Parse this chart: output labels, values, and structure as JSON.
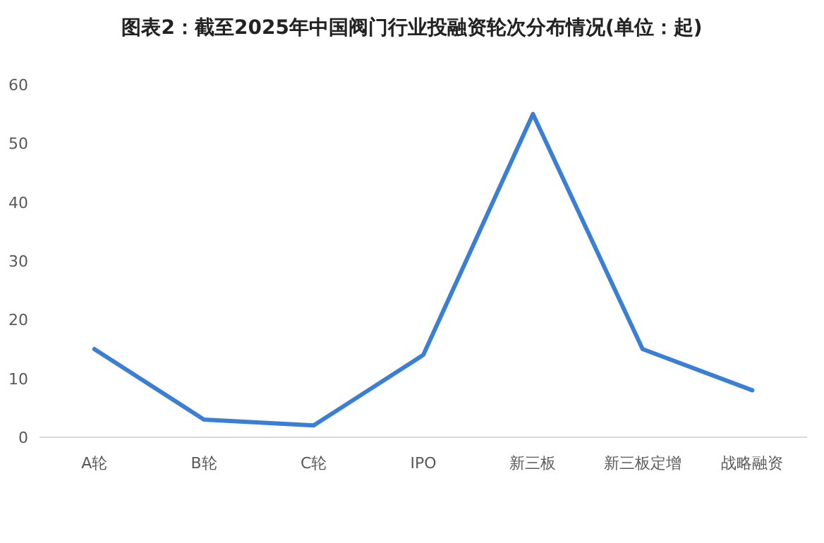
{
  "chart_data": {
    "type": "line",
    "title": "图表2：截至2025年中国阀门行业投融资轮次分布情况(单位：起)",
    "categories": [
      "A轮",
      "B轮",
      "C轮",
      "IPO",
      "新三板",
      "新三板定增",
      "战略融资"
    ],
    "series": [
      {
        "color": "#3a7fd5",
        "values": [
          15,
          3,
          2,
          14,
          55,
          15,
          8
        ]
      }
    ],
    "ylim": [
      0,
      60
    ],
    "yticks": [
      0,
      10,
      20,
      30,
      40,
      50,
      60
    ],
    "grid": false,
    "marker": "none",
    "line_style": "solid"
  }
}
